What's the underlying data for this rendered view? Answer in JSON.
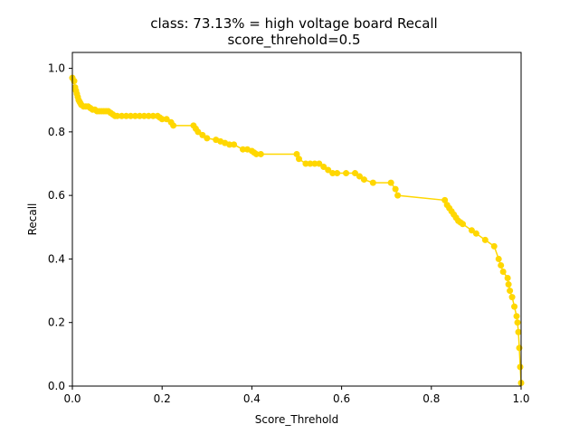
{
  "chart_data": {
    "type": "line",
    "title": "class: 73.13% = high voltage board Recall",
    "subtitle": "score_threhold=0.5",
    "xlabel": "Score_Threhold",
    "ylabel": "Recall",
    "xlim": [
      0,
      1
    ],
    "ylim": [
      0,
      1.05
    ],
    "xticks": [
      "0.0",
      "0.2",
      "0.4",
      "0.6",
      "0.8",
      "1.0"
    ],
    "yticks": [
      "0.0",
      "0.2",
      "0.4",
      "0.6",
      "0.8",
      "1.0"
    ],
    "grid": false,
    "legend": "none",
    "color": "#ffd700",
    "series": [
      {
        "x": [
          0.0,
          0.004,
          0.006,
          0.008,
          0.01,
          0.012,
          0.014,
          0.016,
          0.018,
          0.02,
          0.025,
          0.03,
          0.035,
          0.04,
          0.045,
          0.05,
          0.055,
          0.06,
          0.065,
          0.07,
          0.075,
          0.08,
          0.085,
          0.09,
          0.095,
          0.1,
          0.11,
          0.12,
          0.13,
          0.14,
          0.15,
          0.16,
          0.17,
          0.18,
          0.19,
          0.195,
          0.2,
          0.21,
          0.22,
          0.225,
          0.27,
          0.275,
          0.28,
          0.29,
          0.3,
          0.32,
          0.33,
          0.34,
          0.35,
          0.36,
          0.38,
          0.39,
          0.4,
          0.405,
          0.41,
          0.42,
          0.5,
          0.505,
          0.52,
          0.53,
          0.54,
          0.55,
          0.56,
          0.57,
          0.58,
          0.59,
          0.61,
          0.63,
          0.64,
          0.65,
          0.67,
          0.71,
          0.72,
          0.725,
          0.83,
          0.835,
          0.84,
          0.845,
          0.85,
          0.855,
          0.86,
          0.865,
          0.87,
          0.89,
          0.9,
          0.92,
          0.94,
          0.95,
          0.955,
          0.96,
          0.97,
          0.972,
          0.975,
          0.98,
          0.985,
          0.99,
          0.992,
          0.994,
          0.996,
          0.998,
          1.0
        ],
        "y": [
          0.97,
          0.96,
          0.94,
          0.93,
          0.92,
          0.91,
          0.9,
          0.895,
          0.89,
          0.885,
          0.88,
          0.88,
          0.88,
          0.875,
          0.87,
          0.87,
          0.865,
          0.865,
          0.865,
          0.865,
          0.865,
          0.865,
          0.86,
          0.855,
          0.85,
          0.85,
          0.85,
          0.85,
          0.85,
          0.85,
          0.85,
          0.85,
          0.85,
          0.85,
          0.85,
          0.845,
          0.84,
          0.84,
          0.83,
          0.82,
          0.82,
          0.81,
          0.8,
          0.79,
          0.78,
          0.775,
          0.77,
          0.765,
          0.76,
          0.76,
          0.745,
          0.745,
          0.74,
          0.735,
          0.73,
          0.73,
          0.73,
          0.715,
          0.7,
          0.7,
          0.7,
          0.7,
          0.69,
          0.68,
          0.67,
          0.67,
          0.67,
          0.67,
          0.66,
          0.65,
          0.64,
          0.64,
          0.62,
          0.6,
          0.585,
          0.57,
          0.56,
          0.55,
          0.54,
          0.53,
          0.52,
          0.515,
          0.51,
          0.49,
          0.48,
          0.46,
          0.44,
          0.4,
          0.38,
          0.36,
          0.34,
          0.32,
          0.3,
          0.28,
          0.25,
          0.22,
          0.2,
          0.17,
          0.12,
          0.06,
          0.01
        ]
      }
    ]
  }
}
